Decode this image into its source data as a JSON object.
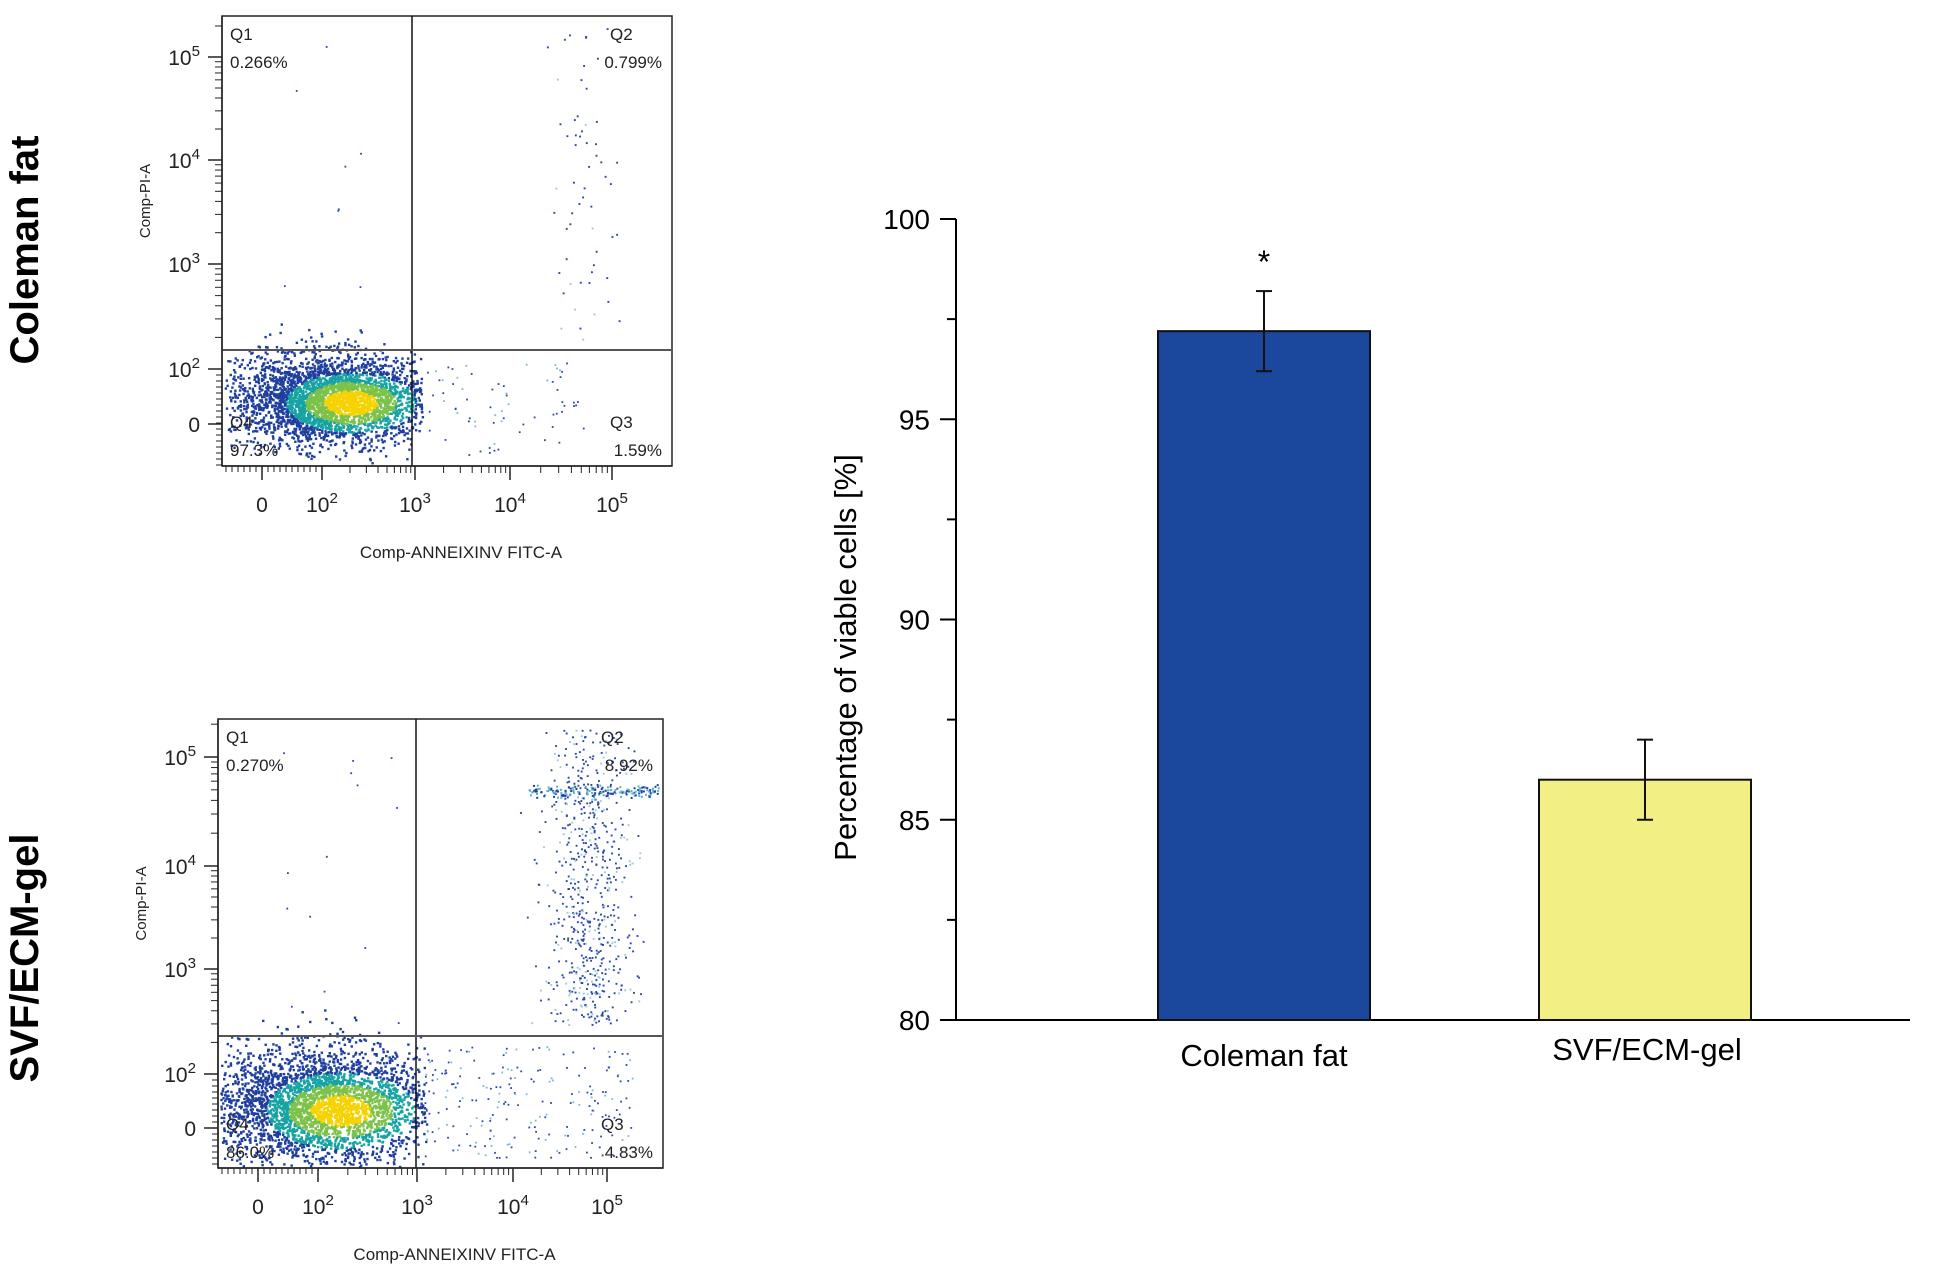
{
  "chart_data": [
    {
      "type": "scatter",
      "panel": "flow-cytometry-coleman-fat",
      "row_label": "Coleman fat",
      "xlabel": "Comp-ANNEIXINV FITC-A",
      "ylabel": "Comp-PI-A",
      "x_ticks": [
        {
          "base": "0",
          "exp": ""
        },
        {
          "base": "10",
          "exp": "2"
        },
        {
          "base": "10",
          "exp": "3"
        },
        {
          "base": "10",
          "exp": "4"
        },
        {
          "base": "10",
          "exp": "5"
        }
      ],
      "y_ticks": [
        {
          "base": "0",
          "exp": ""
        },
        {
          "base": "10",
          "exp": "2"
        },
        {
          "base": "10",
          "exp": "3"
        },
        {
          "base": "10",
          "exp": "4"
        },
        {
          "base": "10",
          "exp": "5"
        }
      ],
      "quadrants": [
        {
          "name": "Q1",
          "value": "0.266%"
        },
        {
          "name": "Q2",
          "value": "0.799%"
        },
        {
          "name": "Q3",
          "value": "1.59%"
        },
        {
          "name": "Q4",
          "value": "97.3%"
        }
      ]
    },
    {
      "type": "scatter",
      "panel": "flow-cytometry-svf-ecm-gel",
      "row_label": "SVF/ECM-gel",
      "xlabel": "Comp-ANNEIXINV FITC-A",
      "ylabel": "Comp-PI-A",
      "x_ticks": [
        {
          "base": "0",
          "exp": ""
        },
        {
          "base": "10",
          "exp": "2"
        },
        {
          "base": "10",
          "exp": "3"
        },
        {
          "base": "10",
          "exp": "4"
        },
        {
          "base": "10",
          "exp": "5"
        }
      ],
      "y_ticks": [
        {
          "base": "0",
          "exp": ""
        },
        {
          "base": "10",
          "exp": "2"
        },
        {
          "base": "10",
          "exp": "3"
        },
        {
          "base": "10",
          "exp": "4"
        },
        {
          "base": "10",
          "exp": "5"
        }
      ],
      "quadrants": [
        {
          "name": "Q1",
          "value": "0.270%"
        },
        {
          "name": "Q2",
          "value": "8.92%"
        },
        {
          "name": "Q3",
          "value": "4.83%"
        },
        {
          "name": "Q4",
          "value": "86.0%"
        }
      ]
    },
    {
      "type": "bar",
      "panel": "viability-bar-chart",
      "categories": [
        "Coleman fat",
        "SVF/ECM-gel"
      ],
      "values": [
        97.2,
        86.0
      ],
      "errors": [
        1.0,
        1.0
      ],
      "annotations": [
        "*",
        ""
      ],
      "ylabel": "Percentage of viable cells [%]",
      "ylim": [
        80,
        100
      ],
      "yticks": [
        80,
        85,
        90,
        95,
        100
      ],
      "colors": [
        "#1b479c",
        "#f2ef85"
      ],
      "grid": false
    }
  ],
  "colors": {
    "density_low": "#1f3f9e",
    "density_mid": "#17a3a3",
    "density_high": "#f5d200",
    "gate_line": "#555555"
  }
}
